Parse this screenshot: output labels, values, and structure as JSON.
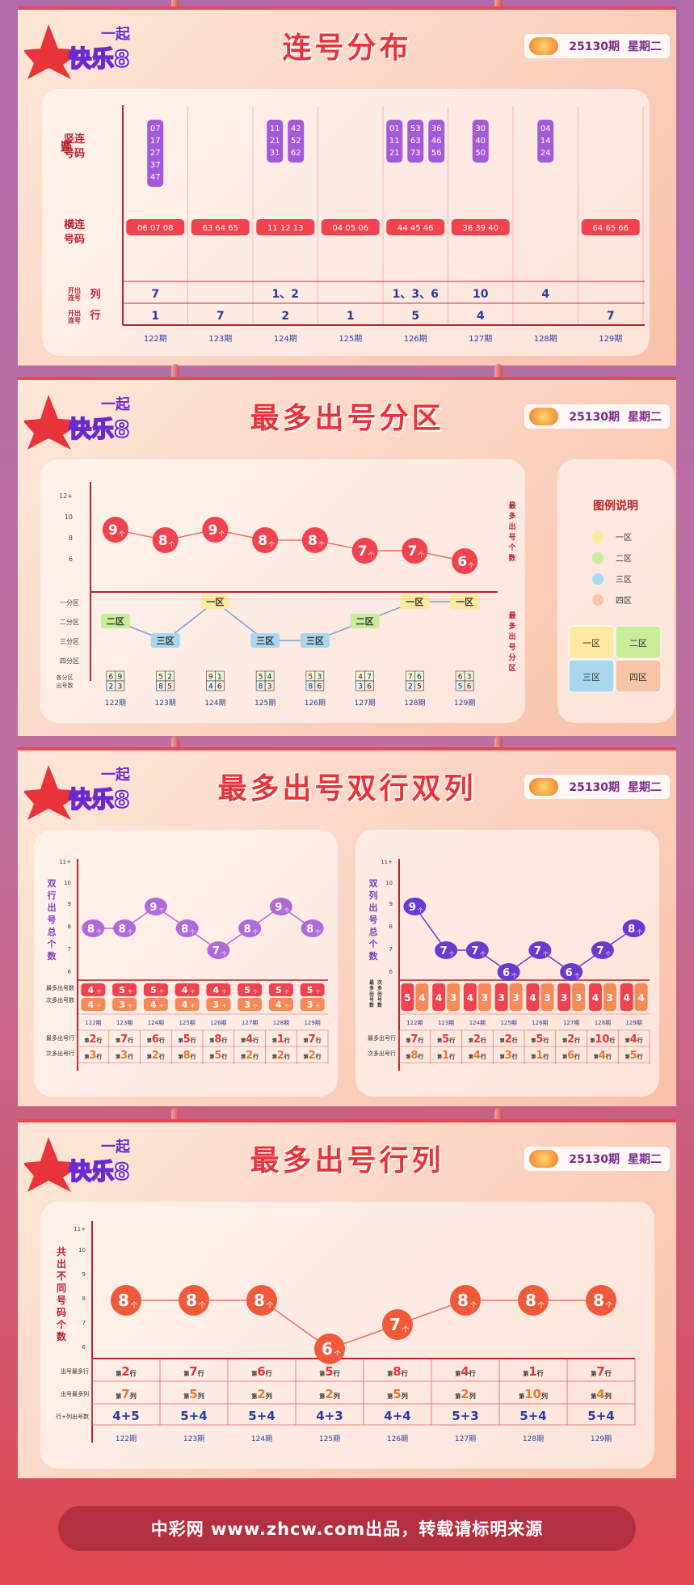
{
  "brand": {
    "logo_top": "一起",
    "logo_main": "快乐8"
  },
  "issue": {
    "number": "25130期",
    "weekday": "星期二"
  },
  "footer": "中彩网 www.zhcw.com出品，转载请标明来源",
  "periods": [
    "122期",
    "123期",
    "124期",
    "125期",
    "126期",
    "127期",
    "128期",
    "129期"
  ],
  "colors": {
    "accent": "#e8333a",
    "purple": "#9b59d6",
    "deep_purple": "#6a3ad0",
    "orange_red": "#f05a3a"
  },
  "p1": {
    "title": "连号分布",
    "row_vert": "竖连号码",
    "row_horiz": "横连号码",
    "row_col": "开出连号列",
    "row_row": "开出连号行",
    "chart_data": {
      "type": "table",
      "vertical": [
        [
          [
            "07",
            "17",
            "27",
            "37",
            "47"
          ]
        ],
        [],
        [
          [
            "11",
            "21",
            "31"
          ],
          [
            "42",
            "52",
            "62"
          ]
        ],
        [],
        [
          [
            "01",
            "11",
            "21"
          ],
          [
            "53",
            "63",
            "73"
          ],
          [
            "36",
            "46",
            "56"
          ]
        ],
        [
          [
            "30",
            "40",
            "50"
          ]
        ],
        [
          [
            "04",
            "14",
            "24"
          ]
        ],
        []
      ],
      "horizontal": [
        "06 07 08",
        "63 64 65",
        "11 12 13",
        "04 05 06",
        "44 45 46",
        "38 39 40",
        "",
        "64 65 66"
      ],
      "columns": [
        "7",
        "",
        "1、2",
        "",
        "1、3、6",
        "10",
        "4",
        ""
      ],
      "rows": [
        "1",
        "7",
        "2",
        "1",
        "5",
        "4",
        "",
        "7"
      ]
    }
  },
  "p2": {
    "title": "最多出号分区",
    "y_ticks": [
      "12+",
      "10",
      "8",
      "6"
    ],
    "zone_ticks": [
      "一分区",
      "二分区",
      "三分区",
      "四分区"
    ],
    "right_label_top": "最多出号个数",
    "right_label_bottom": "最多出号分区",
    "bottom_label": "各分区出号数",
    "legend": {
      "title": "图例说明",
      "items": [
        "一区",
        "二区",
        "三区",
        "四区"
      ],
      "colors": [
        "#ffe9a0",
        "#c8ec9a",
        "#a8d8ee",
        "#f7c4a8"
      ]
    },
    "chart_data": {
      "type": "line",
      "counts": [
        9,
        8,
        9,
        8,
        8,
        7,
        7,
        6
      ],
      "zones": [
        "二区",
        "三区",
        "一区",
        "三区",
        "三区",
        "二区",
        "一区",
        "一区"
      ],
      "zone_levels": [
        2,
        3,
        1,
        3,
        3,
        2,
        1,
        1
      ],
      "zone_counts": [
        [
          "6",
          "9",
          "2",
          "3"
        ],
        [
          "5",
          "2",
          "8",
          "5"
        ],
        [
          "9",
          "1",
          "4",
          "6"
        ],
        [
          "5",
          "4",
          "8",
          "3"
        ],
        [
          "5",
          "3",
          "8",
          "6"
        ],
        [
          "4",
          "7",
          "3",
          "6"
        ],
        [
          "7",
          "6",
          "2",
          "5"
        ],
        [
          "6",
          "3",
          "5",
          "6"
        ]
      ],
      "unit": "个",
      "ylim": [
        5,
        12
      ]
    }
  },
  "p3": {
    "title": "最多出号双行双列",
    "left": {
      "axis_label": "双行出号总个数",
      "y_ticks": [
        "11+",
        "10",
        "9",
        "8",
        "7",
        "6"
      ],
      "row_label_1": "最多出号数",
      "row_label_2": "次多出号数",
      "row_label_3": "最多出号行",
      "row_label_4": "次多出号行",
      "chart_data": {
        "type": "line",
        "totals": [
          8,
          8,
          9,
          8,
          7,
          8,
          9,
          8
        ],
        "most": [
          "4",
          "5",
          "5",
          "4",
          "4",
          "5",
          "5",
          "5"
        ],
        "second": [
          "4",
          "3",
          "4",
          "4",
          "3",
          "3",
          "4",
          "3"
        ],
        "most_row": [
          "2",
          "7",
          "6",
          "5",
          "8",
          "4",
          "1",
          "7"
        ],
        "second_row": [
          "3",
          "3",
          "2",
          "8",
          "5",
          "2",
          "2",
          "2"
        ],
        "prefix": "第",
        "suffix": "行",
        "unit": "个"
      }
    },
    "right": {
      "axis_label": "双列出号总个数",
      "y_ticks": [
        "11+",
        "10",
        "9",
        "8",
        "7",
        "6"
      ],
      "row_label_1": "最多出号数",
      "row_label_2": "次多出号数",
      "row_label_3": "最多出号行",
      "row_label_4": "次多出号行",
      "chart_data": {
        "type": "line",
        "totals": [
          9,
          7,
          7,
          6,
          7,
          6,
          7,
          8
        ],
        "most": [
          "5",
          "4",
          "4",
          "3",
          "4",
          "3",
          "4",
          "4"
        ],
        "second": [
          "4",
          "3",
          "3",
          "3",
          "3",
          "3",
          "3",
          "4"
        ],
        "most_row": [
          "7",
          "5",
          "2",
          "2",
          "5",
          "2",
          "10",
          "4"
        ],
        "second_row": [
          "8",
          "1",
          "4",
          "3",
          "1",
          "6",
          "4",
          "5"
        ],
        "prefix": "第",
        "suffix": "行",
        "unit": "个"
      }
    }
  },
  "p4": {
    "title": "最多出号行列",
    "axis_label": "共出不同号码个数",
    "y_ticks": [
      "11+",
      "10",
      "9",
      "8",
      "7",
      "6"
    ],
    "row_label_1": "出号最多行",
    "row_label_2": "出号最多列",
    "row_label_3": "行+列出号数",
    "chart_data": {
      "type": "line",
      "totals": [
        8,
        8,
        8,
        6,
        7,
        8,
        8,
        8
      ],
      "most_row": [
        "2",
        "7",
        "6",
        "5",
        "8",
        "4",
        "1",
        "7"
      ],
      "most_col": [
        "7",
        "5",
        "2",
        "2",
        "5",
        "2",
        "10",
        "4"
      ],
      "sum": [
        "4+5",
        "5+4",
        "5+4",
        "4+3",
        "4+4",
        "5+3",
        "5+4",
        "5+4"
      ],
      "unit": "个",
      "prefix": "第",
      "row_suffix": "行",
      "col_suffix": "列"
    }
  }
}
